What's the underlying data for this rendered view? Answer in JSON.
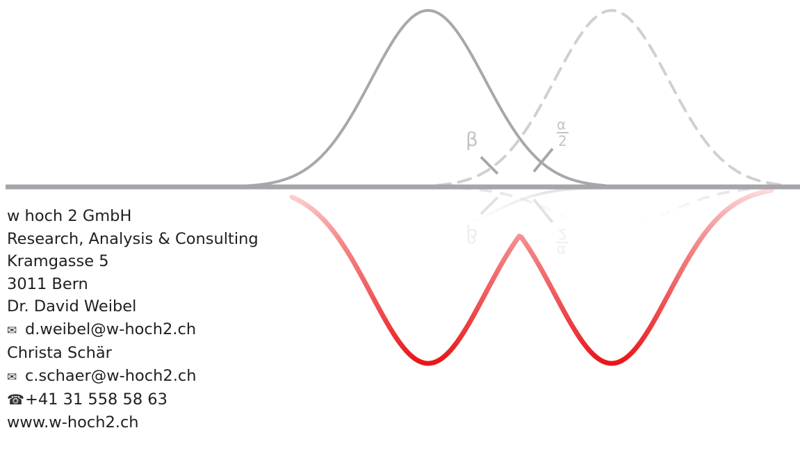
{
  "graphic": {
    "beta_label": "β",
    "alpha_numerator": "α",
    "alpha_denominator": "2",
    "colors": {
      "curve_gray": "#a9a6ad",
      "dashed_gray": "#d0d0d0",
      "baseline_gray": "#a7a5ab",
      "accent_red": "#e8161a"
    }
  },
  "contact": {
    "company": "w hoch 2 GmbH",
    "tagline": "Research, Analysis & Consulting",
    "street": "Kramgasse 5",
    "city": "3011 Bern",
    "person1": "Dr. David Weibel",
    "email1": "d.weibel@w-hoch2.ch",
    "person2": "Christa Schär",
    "email2": "c.schaer@w-hoch2.ch",
    "phone": "+41 31 558 58 63",
    "website": "www.w-hoch2.ch",
    "icons": {
      "email": "envelope-icon",
      "phone": "telephone-icon"
    }
  }
}
